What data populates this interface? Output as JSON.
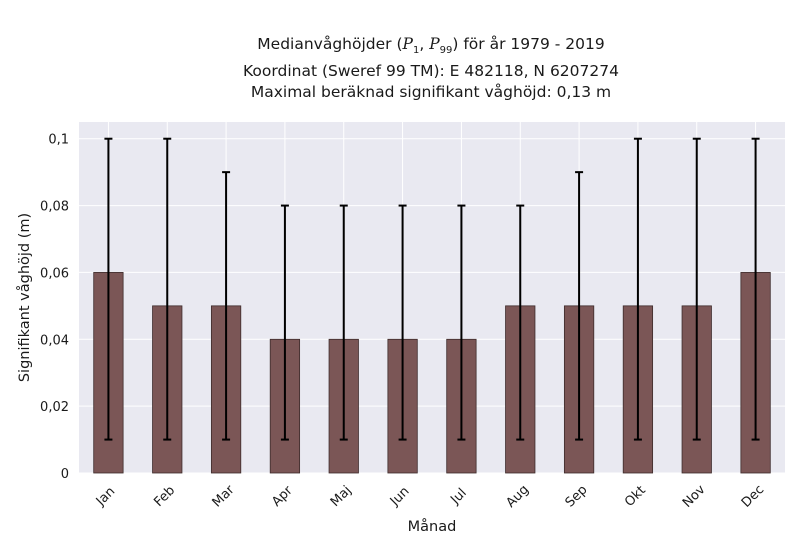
{
  "title": {
    "line1_pre": "Medianvåghöjder (",
    "p_low_base": "P",
    "p_low_sub": "1",
    "sep": ", ",
    "p_high_base": "P",
    "p_high_sub": "99",
    "line1_post": ") för år 1979 - 2019",
    "line2": "Koordinat (Sweref 99 TM): E 482118, N 6207274",
    "line3": "Maximal beräknad signifikant våghöjd: 0,13 m"
  },
  "colors": {
    "plot_bg": "#e9e9f1",
    "grid": "#ffffff",
    "bar": "#7b5656",
    "bar_edge": "#3d2b2b",
    "errorbar": "#000000"
  },
  "chart_data": {
    "type": "bar",
    "categories": [
      "Jan",
      "Feb",
      "Mar",
      "Apr",
      "Maj",
      "Jun",
      "Jul",
      "Aug",
      "Sep",
      "Okt",
      "Nov",
      "Dec"
    ],
    "values": [
      0.06,
      0.05,
      0.05,
      0.04,
      0.04,
      0.04,
      0.04,
      0.05,
      0.05,
      0.05,
      0.05,
      0.06
    ],
    "p1": [
      0.01,
      0.01,
      0.01,
      0.01,
      0.01,
      0.01,
      0.01,
      0.01,
      0.01,
      0.01,
      0.01,
      0.01
    ],
    "p99": [
      0.1,
      0.1,
      0.09,
      0.08,
      0.08,
      0.08,
      0.08,
      0.08,
      0.09,
      0.1,
      0.1,
      0.1
    ],
    "xlabel": "Månad",
    "ylabel": "Signifikant våghöjd (m)",
    "ylim": [
      0,
      0.105
    ],
    "yticks": [
      0,
      0.02,
      0.04,
      0.06,
      0.08,
      0.1
    ],
    "ytick_labels": [
      "0",
      "0,02",
      "0,04",
      "0,06",
      "0,08",
      "0,1"
    ],
    "grid": true
  }
}
